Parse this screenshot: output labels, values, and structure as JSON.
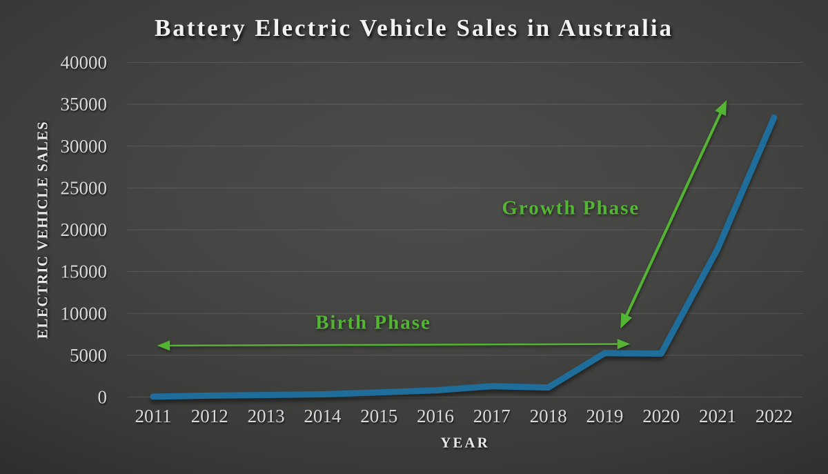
{
  "chart_data": {
    "type": "line",
    "title": "Battery Electric Vehicle Sales in Australia",
    "xlabel": "YEAR",
    "ylabel": "ELECTRIC VEHICLE SALES",
    "categories": [
      "2011",
      "2012",
      "2013",
      "2014",
      "2015",
      "2016",
      "2017",
      "2018",
      "2019",
      "2020",
      "2021",
      "2022"
    ],
    "series": [
      {
        "name": "Battery electric vehicle sales",
        "color": "#1f6d9b",
        "values": [
          50,
          170,
          250,
          330,
          550,
          800,
          1300,
          1150,
          5250,
          5200,
          17700,
          33400
        ]
      }
    ],
    "ylim": [
      0,
      40000
    ],
    "yticks": [
      0,
      5000,
      10000,
      15000,
      20000,
      25000,
      30000,
      35000,
      40000
    ],
    "grid": true,
    "legend": "none",
    "tick_color": "#d9d9d9",
    "text_color": "#e8e8e8",
    "gridline_color": "rgba(255,255,255,0.13)",
    "annotations": [
      {
        "text": "Birth Phase",
        "color": "#54b434",
        "label_at": {
          "year": 2014.9,
          "value": 9000
        },
        "arrow": {
          "style": "double-headed",
          "from": {
            "year": 2011.07,
            "value": 6150
          },
          "to": {
            "year": 2019.45,
            "value": 6350
          },
          "stroke_width": 2.5
        }
      },
      {
        "text": "Growth Phase",
        "color": "#54b434",
        "label_at": {
          "year": 2018.4,
          "value": 22700
        },
        "arrow": {
          "style": "double-headed",
          "from": {
            "year": 2019.28,
            "value": 8200
          },
          "to": {
            "year": 2021.16,
            "value": 35500
          },
          "stroke_width": 4
        }
      }
    ]
  }
}
